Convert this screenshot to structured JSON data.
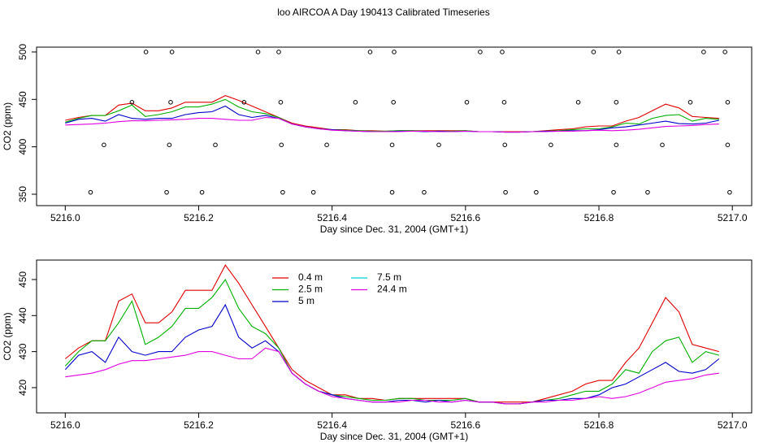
{
  "title": "loo AIRCOA A  Day 190413  Calibrated Timeseries",
  "chart_data": [
    {
      "type": "line",
      "xlabel": "Day since Dec. 31, 2004 (GMT+1)",
      "ylabel": "CO2 (ppm)",
      "xlim": [
        5215.957,
        5217.029
      ],
      "ylim": [
        338,
        505.1
      ],
      "xticks": [
        {
          "value": 5216,
          "label": "5216.0"
        },
        5216.2,
        5216.4,
        5216.6,
        5216.8,
        {
          "value": 5217,
          "label": "5217.0"
        }
      ],
      "yticks": [
        350,
        400,
        450,
        500
      ],
      "markers": {
        "x": [
          5216.121,
          5216.16,
          5216.289,
          5216.32,
          5216.457,
          5216.493,
          5216.622,
          5216.655,
          5216.792,
          5216.83,
          5216.957,
          5216.989,
          5216.1,
          5216.158,
          5216.268,
          5216.323,
          5216.435,
          5216.492,
          5216.602,
          5216.658,
          5216.769,
          5216.826,
          5216.937,
          5216.993,
          5216.058,
          5216.156,
          5216.225,
          5216.324,
          5216.392,
          5216.49,
          5216.56,
          5216.659,
          5216.728,
          5216.826,
          5216.895,
          5216.993,
          5216.038,
          5216.152,
          5216.205,
          5216.326,
          5216.372,
          5216.49,
          5216.538,
          5216.66,
          5216.706,
          5216.822,
          5216.873,
          5216.996
        ],
        "y": [
          500,
          500,
          500,
          500,
          500,
          500,
          500,
          500,
          500,
          500,
          500,
          500,
          447,
          447,
          447,
          447,
          447,
          447,
          447,
          447,
          447,
          447,
          447,
          447,
          402,
          402,
          402,
          402,
          402,
          402,
          402,
          402,
          402,
          402,
          402,
          402,
          352,
          352,
          352,
          352,
          352,
          352,
          352,
          352,
          352,
          352,
          352,
          352
        ]
      }
    },
    {
      "type": "line",
      "xlabel": "Day since Dec. 31, 2004 (GMT+1)",
      "ylabel": "CO2 (ppm)",
      "xlim": [
        5215.957,
        5217.029
      ],
      "ylim": [
        413.0,
        455.4
      ],
      "xticks": [
        {
          "value": 5216,
          "label": "5216.0"
        },
        5216.2,
        5216.4,
        5216.6,
        5216.8,
        {
          "value": 5217,
          "label": "5217.0"
        }
      ],
      "yticks": [
        420,
        430,
        440,
        450
      ],
      "x": [
        5216.0,
        5216.02,
        5216.04,
        5216.06,
        5216.08,
        5216.1,
        5216.12,
        5216.14,
        5216.16,
        5216.18,
        5216.2,
        5216.22,
        5216.24,
        5216.26,
        5216.28,
        5216.3,
        5216.32,
        5216.34,
        5216.36,
        5216.38,
        5216.4,
        5216.42,
        5216.44,
        5216.46,
        5216.48,
        5216.5,
        5216.52,
        5216.54,
        5216.56,
        5216.58,
        5216.6,
        5216.62,
        5216.64,
        5216.66,
        5216.68,
        5216.7,
        5216.72,
        5216.74,
        5216.76,
        5216.78,
        5216.8,
        5216.82,
        5216.84,
        5216.86,
        5216.88,
        5216.9,
        5216.92,
        5216.94,
        5216.96,
        5216.98
      ],
      "series": [
        {
          "name": "0.4 m",
          "color": "#e00000",
          "values": [
            428,
            431,
            433,
            433,
            444,
            446,
            438,
            438,
            441,
            447,
            447,
            447,
            454,
            449,
            443,
            437,
            431,
            425,
            422,
            420,
            418,
            418,
            417,
            417,
            416.5,
            417,
            417,
            417,
            417,
            417,
            417,
            416,
            416,
            416,
            416,
            416,
            417,
            418,
            419,
            421,
            422,
            422,
            427,
            431,
            438,
            445,
            441,
            432,
            431,
            430
          ]
        },
        {
          "name": "2.5 m",
          "color": "#00b000",
          "values": [
            426,
            430,
            433,
            433,
            438,
            444,
            432,
            434,
            437,
            442,
            442,
            445,
            450,
            442,
            437,
            435,
            431,
            424,
            421,
            419,
            418,
            417.5,
            417,
            416.5,
            416.5,
            417,
            417,
            416.5,
            416.5,
            416.5,
            417,
            416,
            416,
            415.5,
            415.5,
            416,
            416.5,
            417,
            418,
            419,
            419,
            421,
            425,
            424,
            430,
            433,
            434,
            427,
            430,
            429
          ]
        },
        {
          "name": "5 m",
          "color": "#0000cc",
          "values": [
            425,
            429,
            430,
            427,
            434,
            430,
            429,
            430,
            430,
            434,
            436,
            437,
            443,
            434,
            431,
            433,
            430,
            424,
            421,
            419,
            418,
            417,
            416.5,
            416,
            416,
            416.5,
            416.5,
            416,
            416.5,
            416,
            416.5,
            416,
            416,
            415.5,
            415.5,
            416,
            416.5,
            416.5,
            417,
            417,
            418,
            420,
            421,
            423,
            425,
            427,
            424.5,
            424,
            425,
            428
          ]
        },
        {
          "name": "7.5 m",
          "color": "#00d0d0",
          "values": [
            null,
            null,
            null,
            null,
            null,
            null,
            null,
            null,
            null,
            null,
            null,
            null,
            null,
            null,
            null,
            null,
            null,
            null,
            null,
            null,
            null,
            null,
            null,
            null,
            null,
            null,
            null,
            null,
            null,
            null,
            null,
            null,
            null,
            null,
            null,
            null,
            null,
            null,
            null,
            null,
            null,
            null,
            null,
            null,
            null,
            null,
            null,
            null,
            null,
            null
          ]
        },
        {
          "name": "24.4 m",
          "color": "#e000e0",
          "values": [
            423,
            423.5,
            424,
            425,
            426.5,
            427.5,
            427.5,
            428,
            428.5,
            429,
            430,
            430,
            429,
            428,
            428,
            431,
            430,
            424,
            421,
            419,
            417.5,
            417,
            416.5,
            416,
            416,
            416,
            416.5,
            416.5,
            416,
            416,
            416.5,
            416,
            416,
            415.5,
            415.5,
            416,
            416,
            416.5,
            416.5,
            417,
            417.5,
            417,
            417.5,
            418.5,
            420,
            421.5,
            422,
            422.5,
            423.5,
            424
          ]
        }
      ]
    }
  ]
}
